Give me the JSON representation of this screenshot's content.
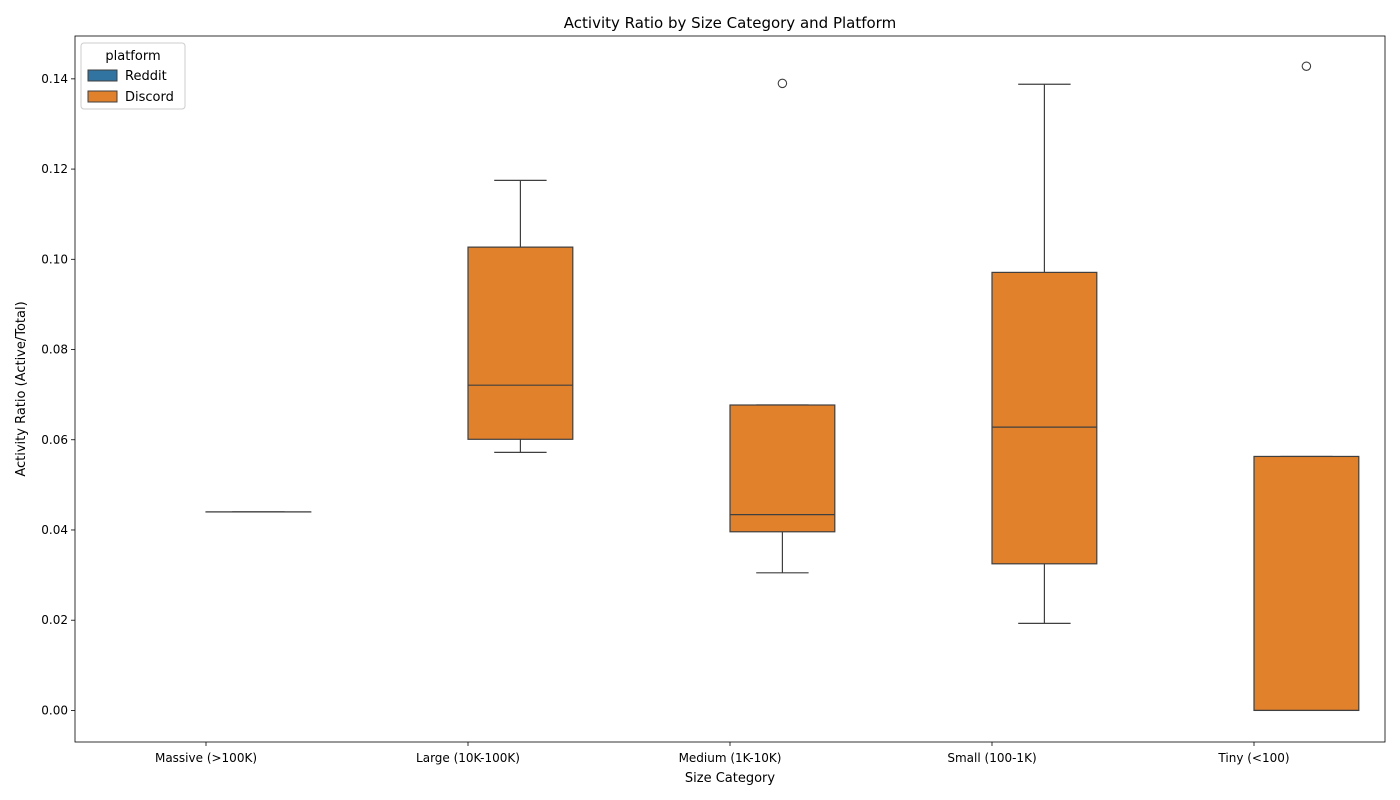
{
  "chart_data": {
    "type": "boxplot",
    "title": "Activity Ratio by Size Category and Platform",
    "xlabel": "Size Category",
    "ylabel": "Activity Ratio (Active/Total)",
    "ylim": [
      -0.007,
      0.1495
    ],
    "yticks": [
      0.0,
      0.02,
      0.04,
      0.06,
      0.08,
      0.1,
      0.12,
      0.14
    ],
    "ytick_labels": [
      "0.00",
      "0.02",
      "0.04",
      "0.06",
      "0.08",
      "0.10",
      "0.12",
      "0.14"
    ],
    "categories": [
      "Massive (>100K)",
      "Large (10K-100K)",
      "Medium (1K-10K)",
      "Small (100-1K)",
      "Tiny (<100)"
    ],
    "legend": {
      "title": "platform",
      "placement": "top-left",
      "entries": [
        {
          "name": "Reddit",
          "color": "#3274a1"
        },
        {
          "name": "Discord",
          "color": "#e1812c"
        }
      ]
    },
    "grid": false,
    "series": [
      {
        "name": "Discord",
        "color": "#e1812c",
        "boxes": [
          {
            "category": "Massive (>100K)",
            "whisker_low": 0.044,
            "q1": 0.044,
            "median": 0.044,
            "q3": 0.044,
            "whisker_high": 0.044,
            "outliers": []
          },
          {
            "category": "Large (10K-100K)",
            "whisker_low": 0.0572,
            "q1": 0.0601,
            "median": 0.0721,
            "q3": 0.1027,
            "whisker_high": 0.1175,
            "outliers": []
          },
          {
            "category": "Medium (1K-10K)",
            "whisker_low": 0.0305,
            "q1": 0.0396,
            "median": 0.0434,
            "q3": 0.0677,
            "whisker_high": 0.0677,
            "outliers": [
              0.139
            ]
          },
          {
            "category": "Small (100-1K)",
            "whisker_low": 0.0193,
            "q1": 0.0325,
            "median": 0.0628,
            "q3": 0.0971,
            "whisker_high": 0.1388,
            "outliers": []
          },
          {
            "category": "Tiny (<100)",
            "whisker_low": 0.0,
            "q1": 0.0,
            "median": 0.0,
            "q3": 0.0563,
            "whisker_high": 0.0563,
            "outliers": [
              0.1428
            ]
          }
        ]
      }
    ]
  }
}
